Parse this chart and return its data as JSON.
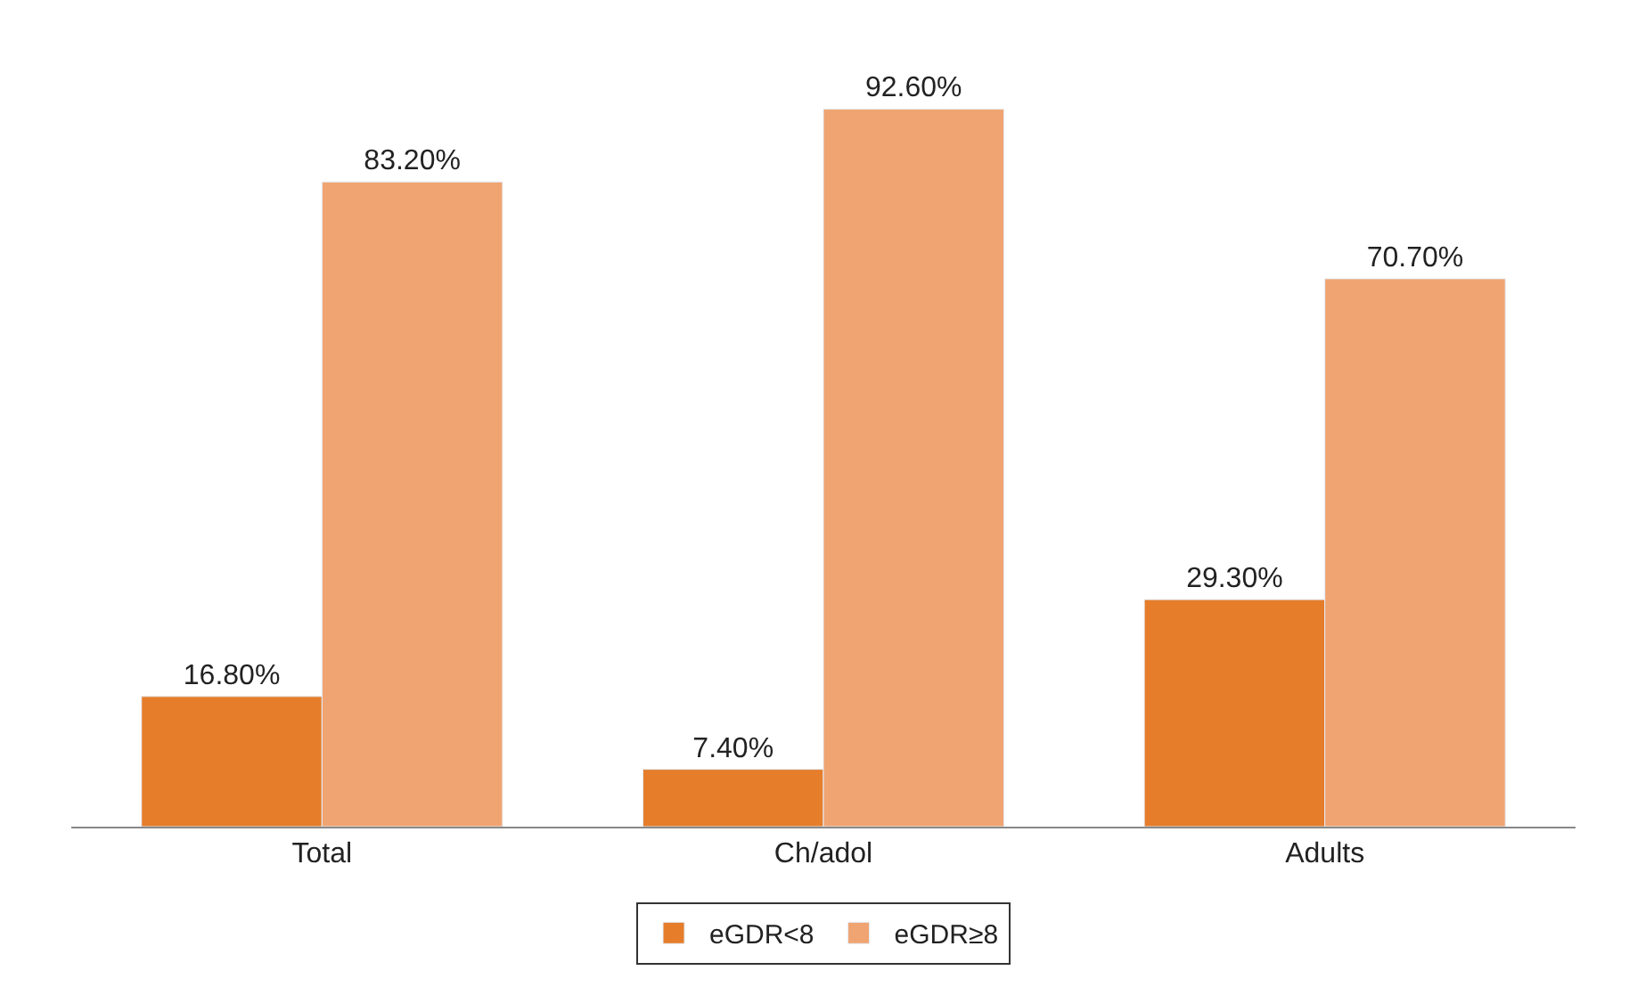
{
  "chart_data": {
    "type": "bar",
    "categories": [
      "Total",
      "Ch/adol",
      "Adults"
    ],
    "series": [
      {
        "name": "eGDR<8",
        "color": "#e57d2b",
        "values": [
          16.8,
          7.4,
          29.3
        ],
        "value_labels": [
          "16.80%",
          "7.40%",
          "29.30%"
        ]
      },
      {
        "name": "eGDR≥8",
        "color": "#f0a472",
        "values": [
          83.2,
          92.6,
          70.7
        ],
        "value_labels": [
          "83.20%",
          "92.60%",
          "70.70%"
        ]
      }
    ],
    "legend": "bottom",
    "tick_labels": "x"
  }
}
